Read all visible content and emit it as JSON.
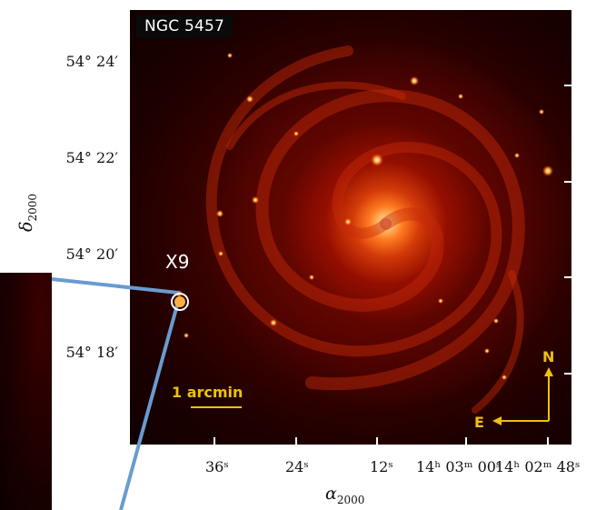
{
  "image": {
    "galaxy_name": "NGC 5457",
    "source_label": "X9",
    "scale_bar_label": "1 arcmin",
    "compass": {
      "north": "N",
      "east": "E"
    },
    "accent_colors": {
      "annotation": "#f0c010",
      "connector": "#6a9bd0",
      "background": "#8b0f00"
    }
  },
  "axes": {
    "y_title": "δ",
    "y_title_sub": "2000",
    "x_title": "α",
    "x_title_sub": "2000",
    "y_ticks": [
      "54° 24′",
      "54° 22′",
      "54° 20′",
      "54° 18′"
    ],
    "x_ticks": [
      "36ˢ",
      "24ˢ",
      "12ˢ",
      "14ʰ 03ᵐ 00ˢ",
      "14ʰ 02ᵐ 48ˢ"
    ]
  }
}
